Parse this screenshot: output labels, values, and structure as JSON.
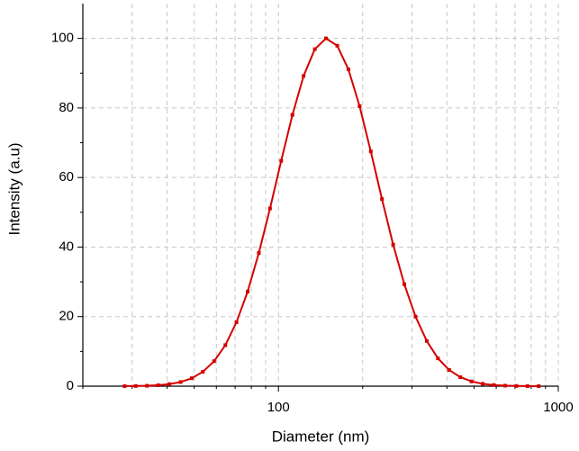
{
  "chart_data": {
    "type": "line",
    "x_label": "Diameter (nm)",
    "y_label": "Intensity (a.u)",
    "x_log": true,
    "grid": true,
    "color": "#d40000",
    "x": [
      28.2,
      30.9,
      33.9,
      37.2,
      40.7,
      44.7,
      49.0,
      53.7,
      58.9,
      64.6,
      70.8,
      77.6,
      85.1,
      93.3,
      102.3,
      112.2,
      123.0,
      134.9,
      147.9,
      162.2,
      177.8,
      195.0,
      213.8,
      234.4,
      257.0,
      281.8,
      309.0,
      338.8,
      371.5,
      407.4,
      446.7,
      489.8,
      537.0,
      588.8,
      645.7,
      707.9,
      776.2,
      851.1
    ],
    "values": [
      0.02,
      0.05,
      0.12,
      0.28,
      0.59,
      1.19,
      2.28,
      4.16,
      7.2,
      11.8,
      18.4,
      27.2,
      38.3,
      51.1,
      64.8,
      78.0,
      89.2,
      96.9,
      100.0,
      97.9,
      91.1,
      80.5,
      67.5,
      53.8,
      40.7,
      29.3,
      20.0,
      13.0,
      8.0,
      4.66,
      2.59,
      1.37,
      0.68,
      0.33,
      0.15,
      0.06,
      0.03,
      0.01
    ],
    "xlim": [
      20,
      1000
    ],
    "xticks": [
      100,
      1000
    ],
    "xminorticks": [
      20,
      30,
      40,
      50,
      60,
      70,
      80,
      90,
      200,
      300,
      400,
      500,
      600,
      700,
      800,
      900
    ],
    "ylim": [
      0,
      110
    ],
    "yticks": [
      0,
      20,
      40,
      60,
      80,
      100
    ],
    "yminorticks": [
      10,
      30,
      50,
      70,
      90
    ]
  }
}
